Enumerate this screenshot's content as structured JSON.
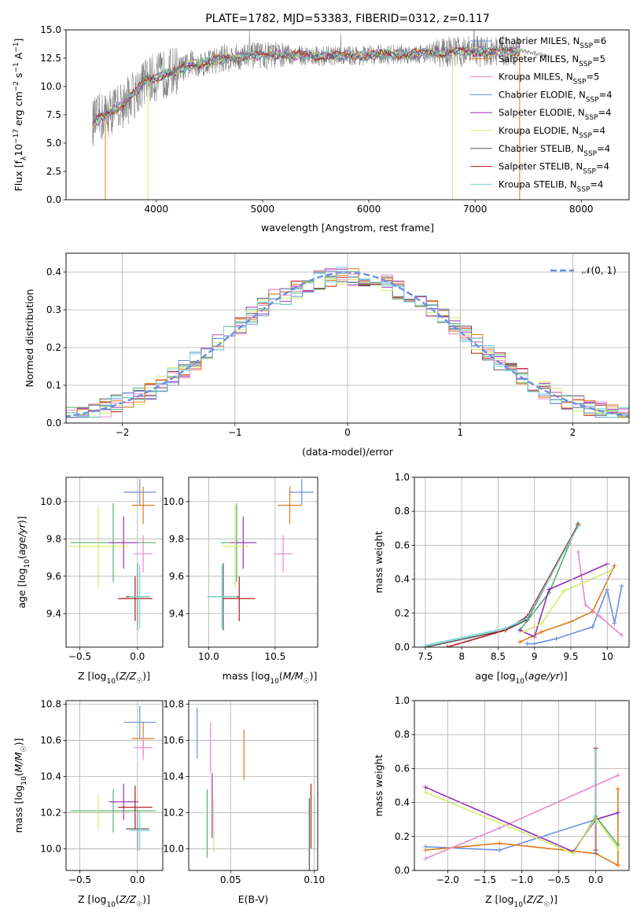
{
  "colors": {
    "series": [
      "#6a8fe0",
      "#e07b1a",
      "#e88ac8",
      "#52b06a",
      "#9a2db8",
      "#d4ec64",
      "#555555",
      "#b01a1a",
      "#6fd6d8"
    ],
    "spectrum_data": "#808080",
    "normal_curve": "#6a8fe0",
    "grid": "#b0b0b0"
  },
  "chart_data": [
    {
      "type": "line",
      "title": "PLATE=1782, MJD=53383, FIBERID=0312, z=0.117",
      "xlabel": "wavelength [Angstrom, rest frame]",
      "ylabel": "Flux [fλ10⁻¹⁷ erg cm⁻² s⁻¹ A⁻¹]",
      "xlim": [
        3150,
        8450
      ],
      "ylim": [
        0,
        15
      ],
      "xticks": [
        4000,
        5000,
        6000,
        7000,
        8000
      ],
      "yticks": [
        0.0,
        2.5,
        5.0,
        7.5,
        10.0,
        12.5,
        15.0
      ],
      "grid": false,
      "legend": "right",
      "series": [
        {
          "name": "Chabrier MILES, N_SSP=6"
        },
        {
          "name": "Salpeter MILES, N_SSP=5"
        },
        {
          "name": "Kroupa MILES, N_SSP=5"
        },
        {
          "name": "Chabrier ELODIE, N_SSP=4"
        },
        {
          "name": "Salpeter ELODIE, N_SSP=4"
        },
        {
          "name": "Kroupa ELODIE, N_SSP=4"
        },
        {
          "name": "Chabrier STELIB, N_SSP=4"
        },
        {
          "name": "Salpeter STELIB, N_SSP=4"
        },
        {
          "name": "Kroupa STELIB, N_SSP=4"
        }
      ],
      "model_continuum": {
        "x": [
          3400,
          3700,
          3900,
          4000,
          4300,
          4600,
          4900,
          5200,
          5500,
          5800,
          6100,
          6400,
          6700,
          7000,
          7300,
          7420
        ],
        "y": [
          6.8,
          8.5,
          10.5,
          10.8,
          11.8,
          12.4,
          12.7,
          12.8,
          12.7,
          12.7,
          12.8,
          12.9,
          13.0,
          13.1,
          13.1,
          13.2
        ]
      }
    },
    {
      "type": "line",
      "xlabel": "(data-model)/error",
      "ylabel": "Normed distribution",
      "xlim": [
        -2.5,
        2.5
      ],
      "ylim": [
        0,
        0.45
      ],
      "xticks": [
        -2,
        -1,
        0,
        1,
        2
      ],
      "yticks": [
        0.0,
        0.1,
        0.2,
        0.3,
        0.4
      ],
      "grid": true,
      "legend": "top-right",
      "legend_label": "𝒩(0, 1)",
      "normal_curve": {
        "mean": 0,
        "sigma": 1
      }
    },
    {
      "type": "scatter",
      "xlabel": "Z [log10(Z/Z☉)]",
      "ylabel": "age  [log10(age/yr)]",
      "xlim": [
        -0.62,
        0.22
      ],
      "ylim": [
        9.22,
        10.13
      ],
      "xticks": [
        -0.5,
        0.0
      ],
      "yticks": [
        9.4,
        9.6,
        9.8,
        10.0
      ],
      "grid": true,
      "points": [
        {
          "x": 0.02,
          "xerr": 0.14,
          "y": 10.05,
          "yerr": 0.07
        },
        {
          "x": 0.05,
          "xerr": 0.1,
          "y": 9.98,
          "yerr": 0.1
        },
        {
          "x": 0.05,
          "xerr": 0.08,
          "y": 9.72,
          "yerr": 0.1
        },
        {
          "x": -0.21,
          "xerr": 0.37,
          "y": 9.78,
          "yerr": 0.21
        },
        {
          "x": -0.12,
          "xerr": 0.13,
          "y": 9.78,
          "yerr": 0.14
        },
        {
          "x": -0.34,
          "xerr": 0.26,
          "y": 9.76,
          "yerr": 0.22
        },
        {
          "x": 0.0,
          "xerr": 0.1,
          "y": 9.49,
          "yerr": 0.18
        },
        {
          "x": -0.02,
          "xerr": 0.15,
          "y": 9.48,
          "yerr": 0.12
        },
        {
          "x": 0.02,
          "xerr": 0.09,
          "y": 9.49,
          "yerr": 0.17
        }
      ]
    },
    {
      "type": "scatter",
      "xlabel": "mass [log10(M/M☉)]",
      "xlim": [
        9.85,
        10.82
      ],
      "ylim": [
        9.22,
        10.13
      ],
      "xticks": [
        10.0,
        10.5
      ],
      "yticks": [
        9.4,
        9.6,
        9.8,
        10.0
      ],
      "grid": true,
      "points": [
        {
          "x": 10.7,
          "xerr": 0.09,
          "y": 10.05,
          "yerr": 0.07
        },
        {
          "x": 10.61,
          "xerr": 0.09,
          "y": 9.98,
          "yerr": 0.1
        },
        {
          "x": 10.56,
          "xerr": 0.07,
          "y": 9.72,
          "yerr": 0.1
        },
        {
          "x": 10.21,
          "xerr": 0.12,
          "y": 9.78,
          "yerr": 0.21
        },
        {
          "x": 10.26,
          "xerr": 0.1,
          "y": 9.78,
          "yerr": 0.14
        },
        {
          "x": 10.2,
          "xerr": 0.1,
          "y": 9.76,
          "yerr": 0.22
        },
        {
          "x": 10.11,
          "xerr": 0.12,
          "y": 9.49,
          "yerr": 0.18
        },
        {
          "x": 10.23,
          "xerr": 0.12,
          "y": 9.48,
          "yerr": 0.12
        },
        {
          "x": 10.1,
          "xerr": 0.11,
          "y": 9.49,
          "yerr": 0.17
        }
      ]
    },
    {
      "type": "line",
      "xlabel": "age  [log10(age/yr)]",
      "ylabel": "mass weight",
      "xlim": [
        7.35,
        10.3
      ],
      "ylim": [
        0,
        1.0
      ],
      "xticks": [
        7.5,
        8.0,
        8.5,
        9.0,
        9.5,
        10.0
      ],
      "yticks": [
        0.0,
        0.2,
        0.4,
        0.6,
        0.8,
        1.0
      ],
      "grid": true,
      "series": [
        {
          "x": [
            8.9,
            9.0,
            9.3,
            9.8,
            10.0,
            10.1,
            10.2
          ],
          "y": [
            0.02,
            0.02,
            0.05,
            0.12,
            0.34,
            0.14,
            0.36
          ]
        },
        {
          "x": [
            8.8,
            9.1,
            9.5,
            9.8,
            10.1
          ],
          "y": [
            0.03,
            0.09,
            0.15,
            0.21,
            0.48
          ]
        },
        {
          "x": [
            9.6,
            9.7,
            9.9,
            10.2
          ],
          "y": [
            0.56,
            0.25,
            0.18,
            0.07
          ]
        },
        {
          "x": [
            8.8,
            9.2,
            9.6
          ],
          "y": [
            0.1,
            0.32,
            0.73
          ]
        },
        {
          "x": [
            8.8,
            9.0,
            9.2,
            10.0
          ],
          "y": [
            0.1,
            0.06,
            0.34,
            0.49
          ]
        },
        {
          "x": [
            8.85,
            9.1,
            9.4,
            10.05
          ],
          "y": [
            0.09,
            0.14,
            0.33,
            0.45
          ]
        },
        {
          "x": [
            7.5,
            8.6,
            8.9,
            9.6
          ],
          "y": [
            0.0,
            0.1,
            0.16,
            0.72
          ]
        },
        {
          "x": [
            7.8,
            8.6,
            8.9,
            9.6
          ],
          "y": [
            0.0,
            0.1,
            0.18,
            0.72
          ]
        },
        {
          "x": [
            7.5,
            8.6,
            8.9,
            9.6
          ],
          "y": [
            0.01,
            0.11,
            0.17,
            0.71
          ]
        }
      ]
    },
    {
      "type": "scatter",
      "xlabel": "Z [log10(Z/Z☉)]",
      "ylabel": "mass [log10(M/M☉)]",
      "xlim": [
        -0.62,
        0.22
      ],
      "ylim": [
        9.88,
        10.82
      ],
      "xticks": [
        -0.5,
        0.0
      ],
      "yticks": [
        10.0,
        10.2,
        10.4,
        10.6,
        10.8
      ],
      "grid": true,
      "points": [
        {
          "x": 0.02,
          "xerr": 0.14,
          "y": 10.7,
          "yerr": 0.09
        },
        {
          "x": 0.05,
          "xerr": 0.1,
          "y": 10.61,
          "yerr": 0.09
        },
        {
          "x": 0.05,
          "xerr": 0.08,
          "y": 10.56,
          "yerr": 0.07
        },
        {
          "x": -0.21,
          "xerr": 0.37,
          "y": 10.21,
          "yerr": 0.12
        },
        {
          "x": -0.12,
          "xerr": 0.13,
          "y": 10.26,
          "yerr": 0.1
        },
        {
          "x": -0.34,
          "xerr": 0.26,
          "y": 10.2,
          "yerr": 0.1
        },
        {
          "x": 0.0,
          "xerr": 0.1,
          "y": 10.11,
          "yerr": 0.12
        },
        {
          "x": -0.02,
          "xerr": 0.15,
          "y": 10.23,
          "yerr": 0.12
        },
        {
          "x": 0.02,
          "xerr": 0.09,
          "y": 10.1,
          "yerr": 0.11
        }
      ]
    },
    {
      "type": "scatter",
      "xlabel": "E(B-V)",
      "xlim": [
        0.025,
        0.102
      ],
      "ylim": [
        9.88,
        10.82
      ],
      "xticks": [
        0.05,
        0.1
      ],
      "yticks": [
        10.0,
        10.2,
        10.4,
        10.6,
        10.8
      ],
      "grid": true,
      "points": [
        {
          "x": 0.03,
          "y": 10.64,
          "yerr": 0.14
        },
        {
          "x": 0.058,
          "y": 10.52,
          "yerr": 0.14
        },
        {
          "x": 0.038,
          "y": 10.56,
          "yerr": 0.14
        },
        {
          "x": 0.036,
          "y": 10.14,
          "yerr": 0.19
        },
        {
          "x": 0.039,
          "y": 10.24,
          "yerr": 0.18
        },
        {
          "x": 0.04,
          "y": 10.13,
          "yerr": 0.15
        },
        {
          "x": 0.097,
          "y": 10.08,
          "yerr": 0.2
        },
        {
          "x": 0.098,
          "y": 10.18,
          "yerr": 0.18
        },
        {
          "x": 0.1,
          "y": 10.15,
          "yerr": 0.14
        }
      ]
    },
    {
      "type": "line",
      "xlabel": "Z [log10(Z/Z☉)]",
      "ylabel": "mass weight",
      "xlim": [
        -2.45,
        0.45
      ],
      "ylim": [
        0,
        1.0
      ],
      "xticks": [
        -2.0,
        -1.5,
        -1.0,
        -0.5,
        0.0
      ],
      "yticks": [
        0.0,
        0.2,
        0.4,
        0.6,
        0.8,
        1.0
      ],
      "grid": true,
      "series": [
        {
          "x": [
            -2.3,
            -1.3,
            0.0,
            0.3
          ],
          "y": [
            0.14,
            0.12,
            0.3,
            0.34
          ]
        },
        {
          "x": [
            -2.3,
            -1.3,
            0.0,
            0.3,
            0.3
          ],
          "y": [
            0.12,
            0.16,
            0.1,
            0.03,
            0.48
          ]
        },
        {
          "x": [
            -2.3,
            -1.3,
            0.3
          ],
          "y": [
            0.07,
            0.25,
            0.56
          ]
        },
        {
          "x": [
            -0.3,
            0.0,
            0.3
          ],
          "y": [
            0.1,
            0.32,
            0.15
          ]
        },
        {
          "x": [
            -2.3,
            -0.3,
            0.0,
            0.3
          ],
          "y": [
            0.49,
            0.11,
            0.3,
            0.34
          ]
        },
        {
          "x": [
            -2.3,
            -0.3,
            0.0,
            0.3
          ],
          "y": [
            0.46,
            0.1,
            0.31,
            0.13
          ]
        },
        {
          "x": [
            0.0,
            0.0
          ],
          "y": [
            0.1,
            0.72
          ]
        },
        {
          "x": [
            0.0,
            0.0
          ],
          "y": [
            0.12,
            0.72
          ]
        },
        {
          "x": [
            0.0,
            0.0
          ],
          "y": [
            0.28,
            0.71
          ]
        }
      ]
    }
  ]
}
